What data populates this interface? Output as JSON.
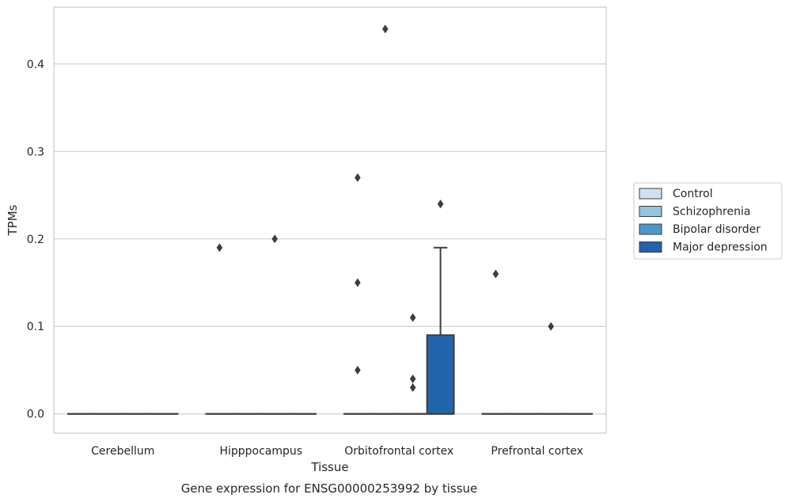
{
  "chart_data": {
    "type": "box",
    "title": "",
    "xlabel": "Tissue",
    "ylabel": "TPMs",
    "caption": "Gene expression for ENSG00000253992 by tissue",
    "categories": [
      "Cerebellum",
      "Hipppocampus",
      "Orbitofrontal cortex",
      "Prefrontal cortex"
    ],
    "ylim": [
      -0.022,
      0.465
    ],
    "yticks": [
      0.0,
      0.1,
      0.2,
      0.3,
      0.4
    ],
    "ytick_labels": [
      "0.0",
      "0.1",
      "0.2",
      "0.3",
      "0.4"
    ],
    "grid": "horizontal",
    "legend_position": "right",
    "series": [
      {
        "name": "Control",
        "color": "#d0e1f2",
        "boxes": [
          {
            "q1": 0,
            "median": 0,
            "q3": 0,
            "whisker_low": 0,
            "whisker_high": 0,
            "outliers": []
          },
          {
            "q1": 0,
            "median": 0,
            "q3": 0,
            "whisker_low": 0,
            "whisker_high": 0,
            "outliers": [
              0.19
            ]
          },
          {
            "q1": 0,
            "median": 0,
            "q3": 0,
            "whisker_low": 0,
            "whisker_high": 0,
            "outliers": [
              0.05,
              0.15,
              0.27
            ]
          },
          {
            "q1": 0,
            "median": 0,
            "q3": 0,
            "whisker_low": 0,
            "whisker_high": 0,
            "outliers": [
              0.16
            ]
          }
        ]
      },
      {
        "name": "Schizophrenia",
        "color": "#94c4df",
        "boxes": [
          {
            "q1": 0,
            "median": 0,
            "q3": 0,
            "whisker_low": 0,
            "whisker_high": 0,
            "outliers": []
          },
          {
            "q1": 0,
            "median": 0,
            "q3": 0,
            "whisker_low": 0,
            "whisker_high": 0,
            "outliers": []
          },
          {
            "q1": 0,
            "median": 0,
            "q3": 0,
            "whisker_low": 0,
            "whisker_high": 0,
            "outliers": [
              0.44
            ]
          },
          {
            "q1": 0,
            "median": 0,
            "q3": 0,
            "whisker_low": 0,
            "whisker_high": 0,
            "outliers": []
          }
        ]
      },
      {
        "name": "Bipolar disorder",
        "color": "#4a98c9",
        "boxes": [
          {
            "q1": 0,
            "median": 0,
            "q3": 0,
            "whisker_low": 0,
            "whisker_high": 0,
            "outliers": []
          },
          {
            "q1": 0,
            "median": 0,
            "q3": 0,
            "whisker_low": 0,
            "whisker_high": 0,
            "outliers": [
              0.2
            ]
          },
          {
            "q1": 0,
            "median": 0,
            "q3": 0,
            "whisker_low": 0,
            "whisker_high": 0,
            "outliers": [
              0.03,
              0.04,
              0.11
            ]
          },
          {
            "q1": 0,
            "median": 0,
            "q3": 0,
            "whisker_low": 0,
            "whisker_high": 0,
            "outliers": [
              0.1
            ]
          }
        ]
      },
      {
        "name": "Major depression",
        "color": "#2164ab",
        "boxes": [
          {
            "q1": 0,
            "median": 0,
            "q3": 0,
            "whisker_low": 0,
            "whisker_high": 0,
            "outliers": []
          },
          {
            "q1": 0,
            "median": 0,
            "q3": 0,
            "whisker_low": 0,
            "whisker_high": 0,
            "outliers": []
          },
          {
            "q1": 0,
            "median": 0,
            "q3": 0.09,
            "whisker_low": 0,
            "whisker_high": 0.19,
            "outliers": [
              0.24
            ]
          },
          {
            "q1": 0,
            "median": 0,
            "q3": 0,
            "whisker_low": 0,
            "whisker_high": 0,
            "outliers": []
          }
        ]
      }
    ]
  }
}
